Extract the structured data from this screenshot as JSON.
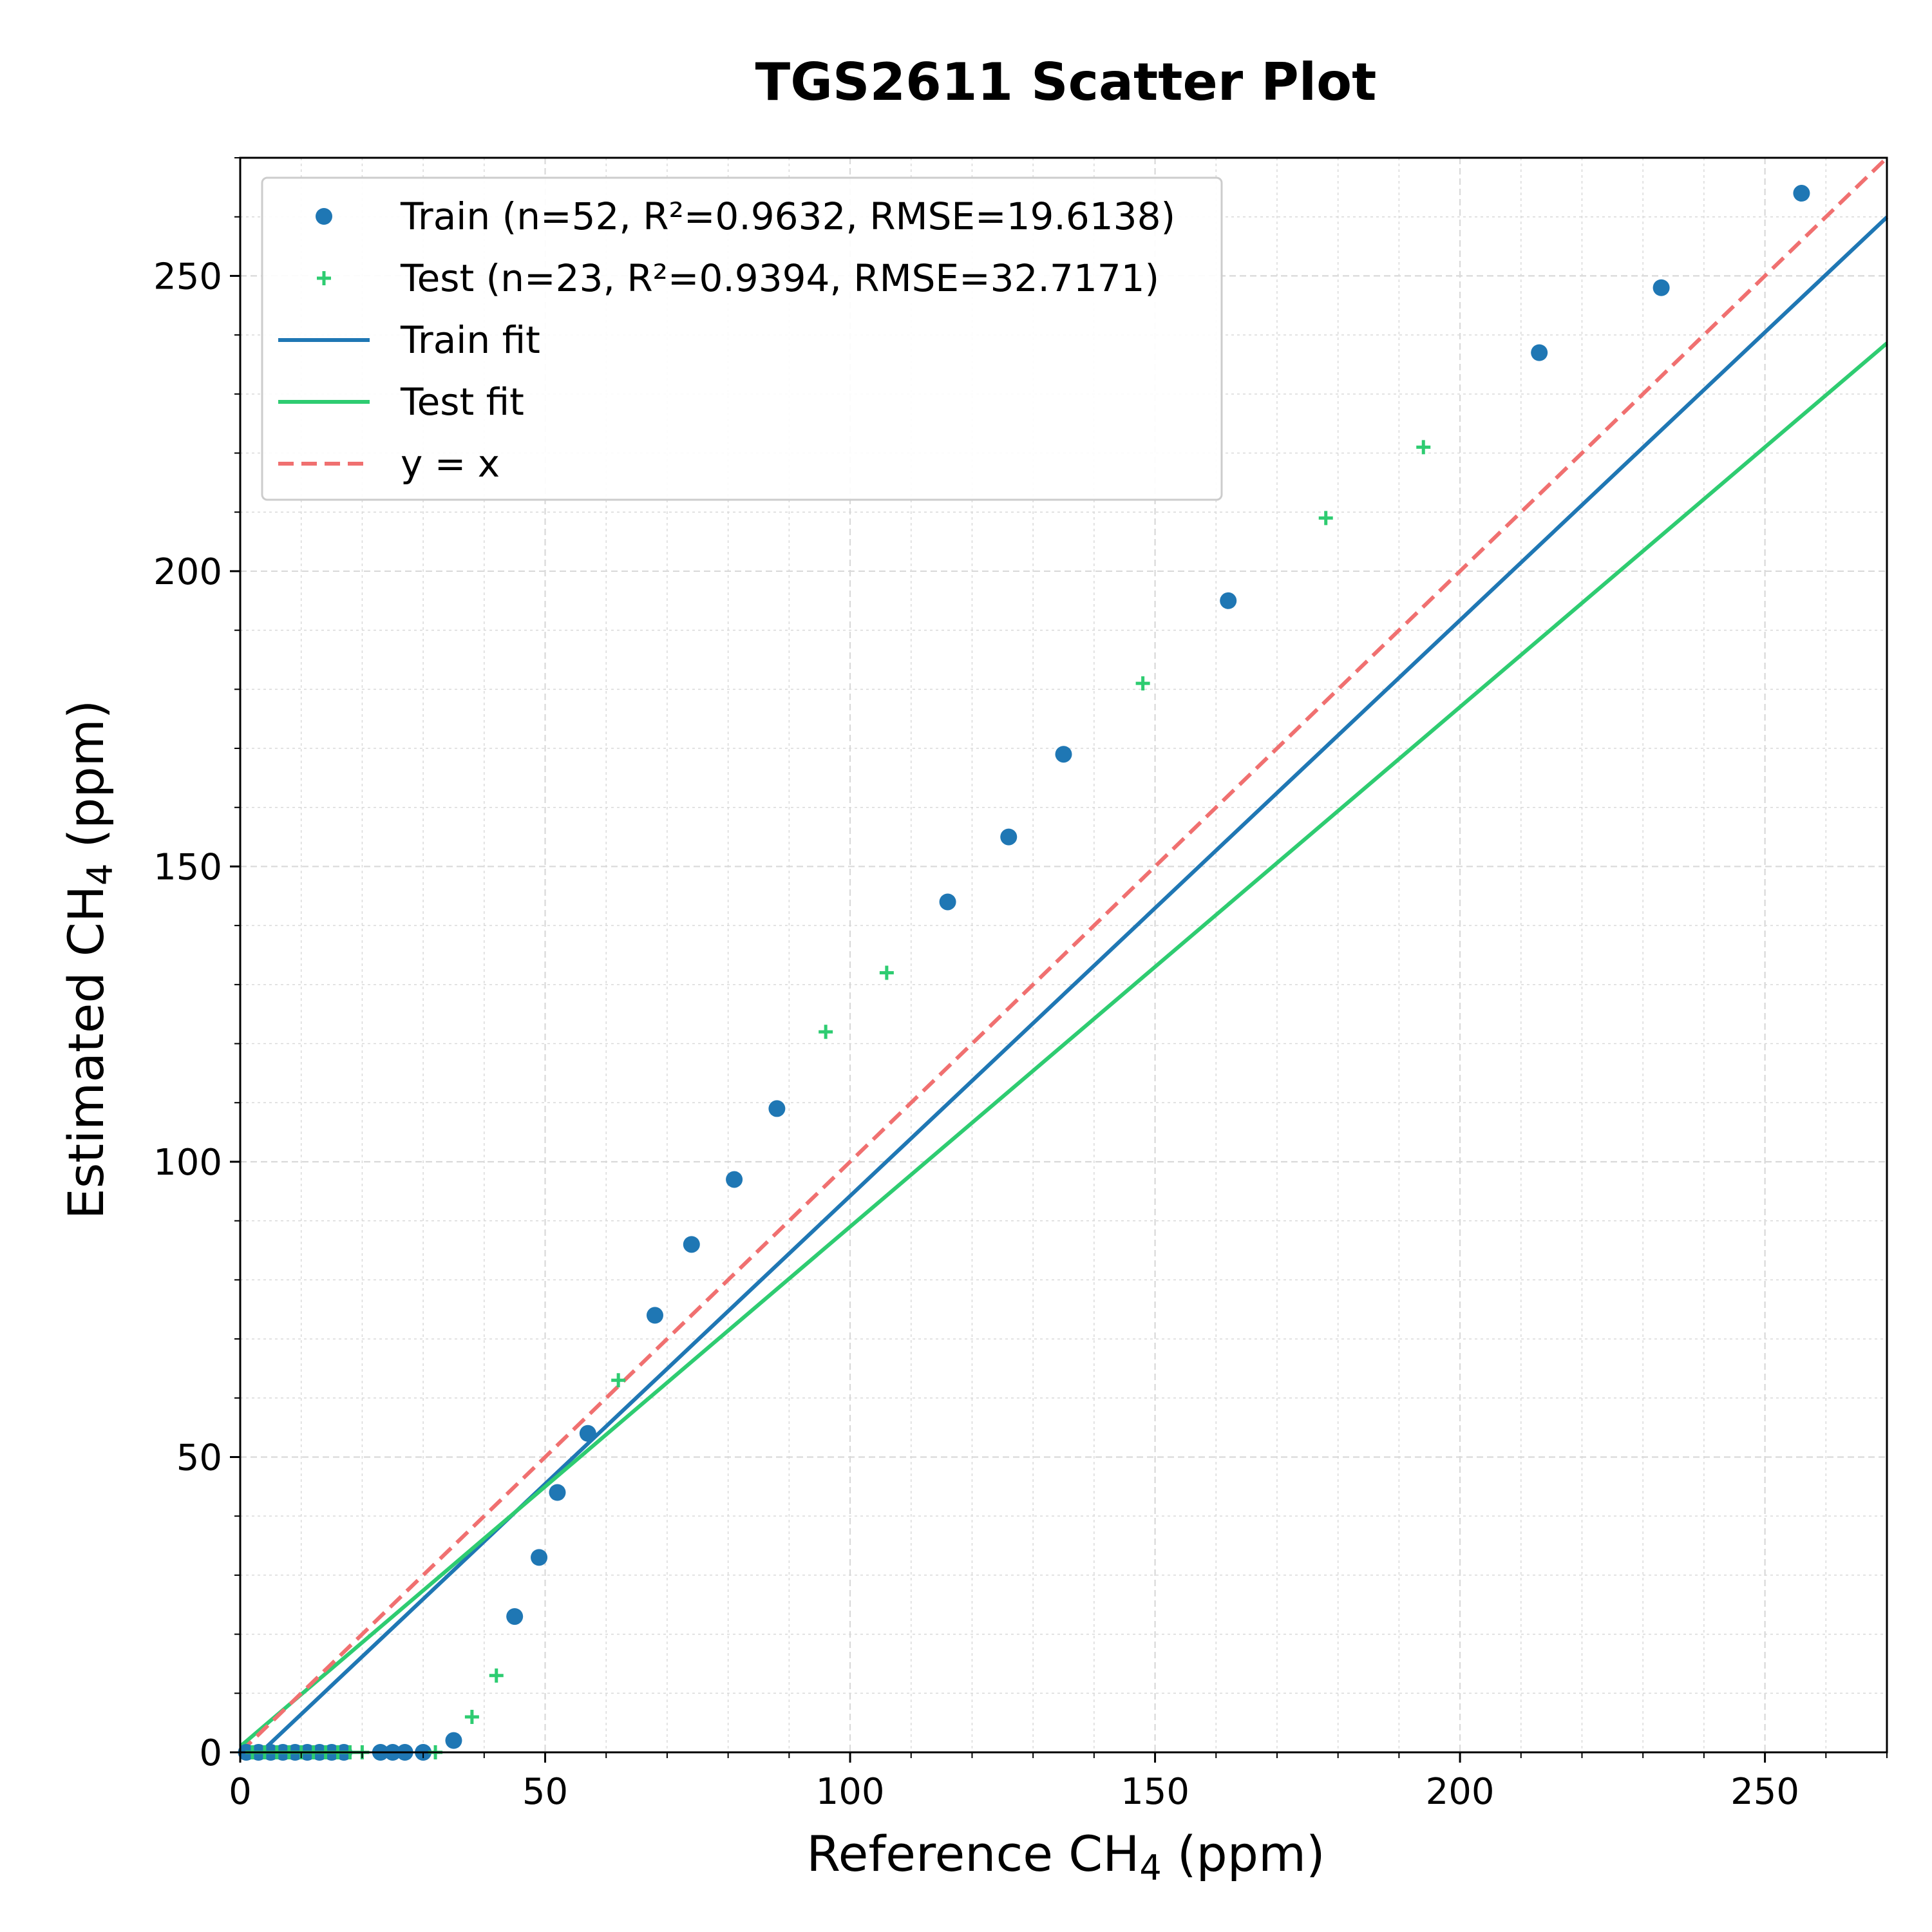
{
  "chart_data": {
    "type": "scatter",
    "title": "TGS2611 Scatter Plot",
    "xlabel": {
      "prefix": "Reference CH",
      "sub": "4",
      "suffix": " (ppm)"
    },
    "ylabel": {
      "prefix": "Estimated CH",
      "sub": "4",
      "suffix": " (ppm)"
    },
    "xlim": [
      0,
      270
    ],
    "ylim": [
      0,
      270
    ],
    "xticks": [
      0,
      50,
      100,
      150,
      200,
      250
    ],
    "yticks": [
      0,
      50,
      100,
      150,
      200,
      250
    ],
    "minor_step": 10,
    "grid": true,
    "legend_position": "top-left",
    "colors": {
      "train": "#1f77b4",
      "test": "#2ecc71",
      "identity": "#f07070",
      "grid": "#d9d9d9"
    },
    "series": [
      {
        "key": "train",
        "name": "Train (n=52, R²=0.9632, RMSE=19.6138)",
        "marker": "circle",
        "points": [
          [
            1,
            0
          ],
          [
            3,
            0
          ],
          [
            5,
            0
          ],
          [
            7,
            0
          ],
          [
            9,
            0
          ],
          [
            11,
            0
          ],
          [
            13,
            0
          ],
          [
            15,
            0
          ],
          [
            17,
            0
          ],
          [
            23,
            0
          ],
          [
            25,
            0
          ],
          [
            27,
            0
          ],
          [
            30,
            0
          ],
          [
            35,
            2
          ],
          [
            45,
            23
          ],
          [
            49,
            33
          ],
          [
            52,
            44
          ],
          [
            57,
            54
          ],
          [
            68,
            74
          ],
          [
            74,
            86
          ],
          [
            81,
            97
          ],
          [
            88,
            109
          ],
          [
            116,
            144
          ],
          [
            126,
            155
          ],
          [
            135,
            169
          ],
          [
            162,
            195
          ],
          [
            213,
            237
          ],
          [
            233,
            248
          ],
          [
            256,
            264
          ]
        ]
      },
      {
        "key": "test",
        "name": "Test (n=23, R²=0.9394, RMSE=32.7171)",
        "marker": "plus",
        "points": [
          [
            2,
            0
          ],
          [
            4,
            0
          ],
          [
            6,
            0
          ],
          [
            8,
            0
          ],
          [
            10,
            0
          ],
          [
            12,
            0
          ],
          [
            14,
            0
          ],
          [
            16,
            0
          ],
          [
            18,
            0
          ],
          [
            20,
            0
          ],
          [
            32,
            0
          ],
          [
            38,
            6
          ],
          [
            42,
            13
          ],
          [
            62,
            63
          ],
          [
            96,
            122
          ],
          [
            106,
            132
          ],
          [
            148,
            181
          ],
          [
            178,
            209
          ],
          [
            194,
            221
          ]
        ]
      }
    ],
    "fit_lines": [
      {
        "key": "train",
        "name": "Train fit",
        "slope": 0.975,
        "intercept": -3.3,
        "x_range": [
          3.4,
          270
        ]
      },
      {
        "key": "test",
        "name": "Test fit",
        "slope": 0.88,
        "intercept": 1.0,
        "x_range": [
          0,
          270
        ]
      },
      {
        "key": "identity",
        "name": "y = x",
        "slope": 1.0,
        "intercept": 0.0,
        "x_range": [
          0,
          270
        ],
        "dashed": true
      }
    ]
  }
}
